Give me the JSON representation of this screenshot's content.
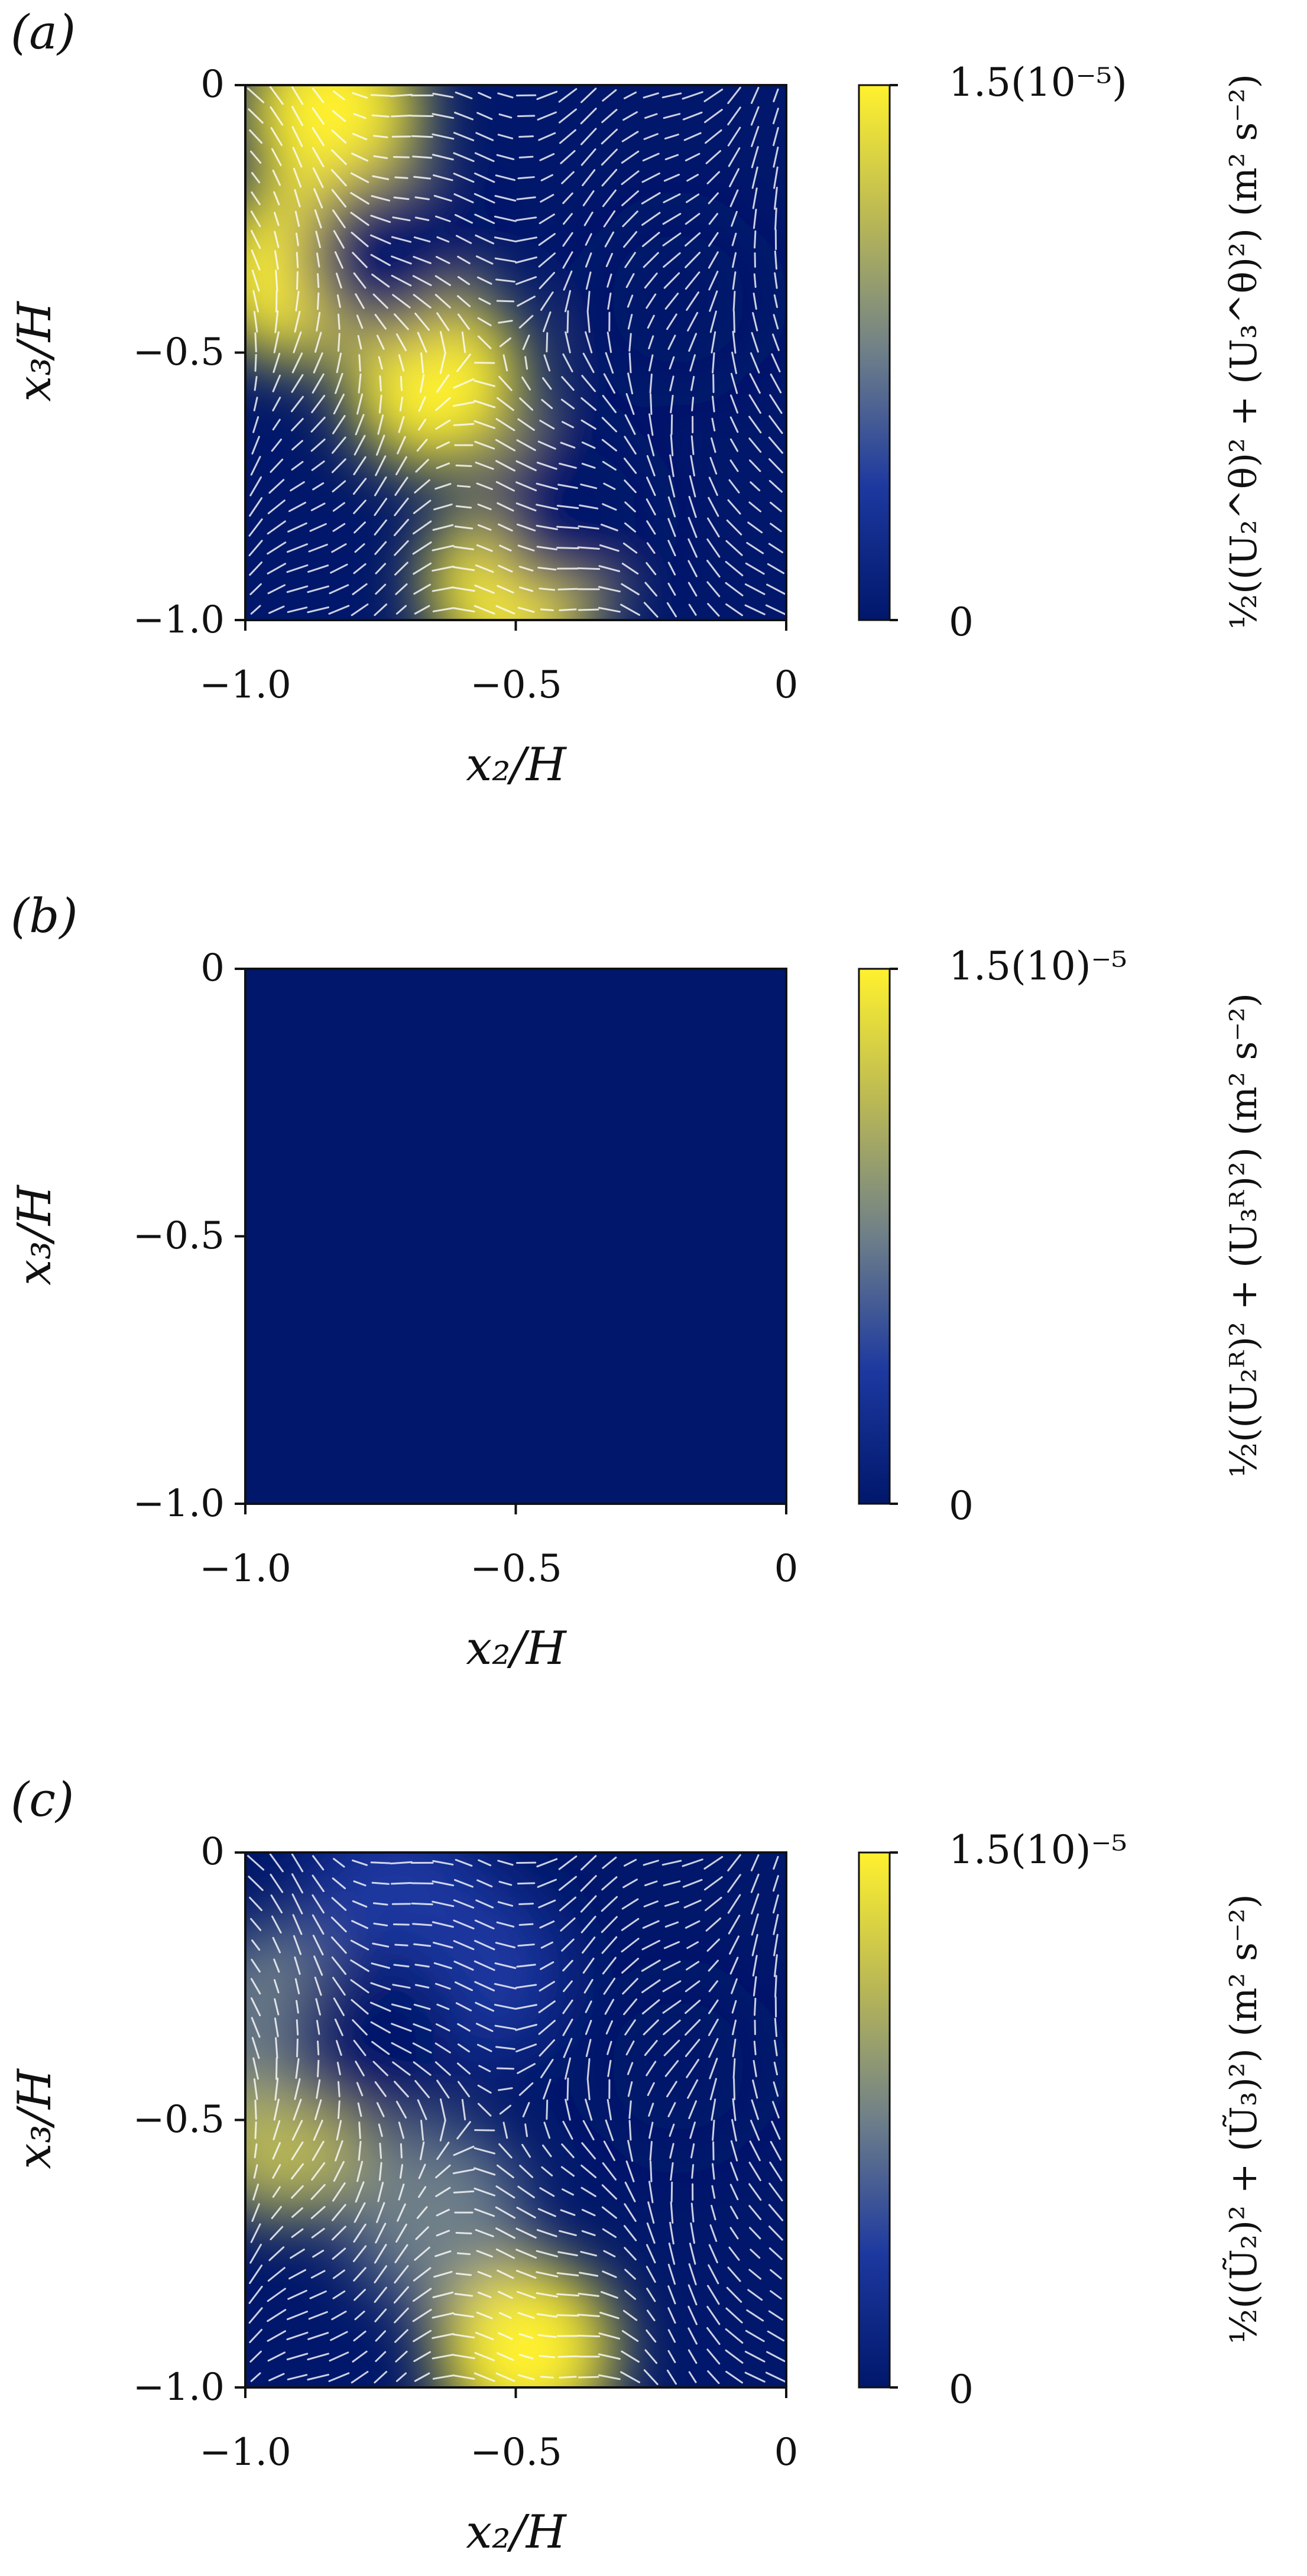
{
  "chart_data": [
    {
      "type": "heatmap",
      "panel_label": "(a)",
      "xlabel": "x₂/H",
      "ylabel": "x₃/H",
      "xlim": [
        -1.0,
        0
      ],
      "ylim": [
        -1.0,
        0
      ],
      "xticks": [
        "−1.0",
        "−0.5",
        "0"
      ],
      "yticks": [
        "0",
        "−0.5",
        "−1.0"
      ],
      "colorbar": {
        "min_label": "0",
        "max_label": "1.5(10⁻⁵)",
        "range": [
          0,
          1.5e-05
        ],
        "colors": [
          "#00176b",
          "#1d39a0",
          "#6e7f89",
          "#b9b855",
          "#fff12e"
        ],
        "title": "½((U₂^θ)² + (U₃^θ)²) (m² s⁻²)"
      },
      "field_features": [
        {
          "x": -0.84,
          "y": -0.05,
          "value": 1.5e-05
        },
        {
          "x": -0.91,
          "y": -0.35,
          "value": 1.5e-05
        },
        {
          "x": -0.65,
          "y": -0.55,
          "value": 1.5e-05
        },
        {
          "x": -0.5,
          "y": -0.93,
          "value": 1.5e-05
        },
        {
          "x": -0.74,
          "y": -0.32,
          "value": 1e-06
        },
        {
          "x": -0.4,
          "y": -0.8,
          "value": 1e-06
        },
        {
          "x": -0.2,
          "y": -0.4,
          "value": 1e-06
        }
      ],
      "vector_overlay": "white arrows"
    },
    {
      "type": "heatmap",
      "panel_label": "(b)",
      "xlabel": "x₂/H",
      "ylabel": "x₃/H",
      "xlim": [
        -1.0,
        0
      ],
      "ylim": [
        -1.0,
        0
      ],
      "xticks": [
        "−1.0",
        "−0.5",
        "0"
      ],
      "yticks": [
        "0",
        "−0.5",
        "−1.0"
      ],
      "colorbar": {
        "min_label": "0",
        "max_label": "1.5(10)⁻⁵",
        "range": [
          0,
          1.5e-05
        ],
        "colors": [
          "#00176b",
          "#1d39a0",
          "#6e7f89",
          "#b9b855",
          "#fff12e"
        ],
        "title": "½((U₂ᴿ)² + (U₃ᴿ)²) (m² s⁻²)"
      },
      "field_features": [],
      "uniform_value": 0
    },
    {
      "type": "heatmap",
      "panel_label": "(c)",
      "xlabel": "x₂/H",
      "ylabel": "x₃/H",
      "xlim": [
        -1.0,
        0
      ],
      "ylim": [
        -1.0,
        0
      ],
      "xticks": [
        "−1.0",
        "−0.5",
        "0"
      ],
      "yticks": [
        "0",
        "−0.5",
        "−1.0"
      ],
      "colorbar": {
        "min_label": "0",
        "max_label": "1.5(10)⁻⁵",
        "range": [
          0,
          1.5e-05
        ],
        "colors": [
          "#00176b",
          "#1d39a0",
          "#6e7f89",
          "#b9b855",
          "#fff12e"
        ],
        "title": "½((Ũ₂)² + (Ũ₃)²) (m² s⁻²)"
      },
      "field_features": [
        {
          "x": -0.93,
          "y": -0.52,
          "value": 1.3e-05
        },
        {
          "x": -0.92,
          "y": -0.3,
          "value": 8e-06
        },
        {
          "x": -0.48,
          "y": -0.93,
          "value": 1.4e-05
        },
        {
          "x": -0.65,
          "y": -0.68,
          "value": 6e-06
        },
        {
          "x": -0.58,
          "y": -0.22,
          "value": 5e-06
        },
        {
          "x": -0.72,
          "y": -0.1,
          "value": 4e-06
        },
        {
          "x": -0.76,
          "y": -0.35,
          "value": 1e-06
        },
        {
          "x": -0.2,
          "y": -0.4,
          "value": 1e-06
        }
      ],
      "vector_overlay": "white arrows"
    }
  ]
}
